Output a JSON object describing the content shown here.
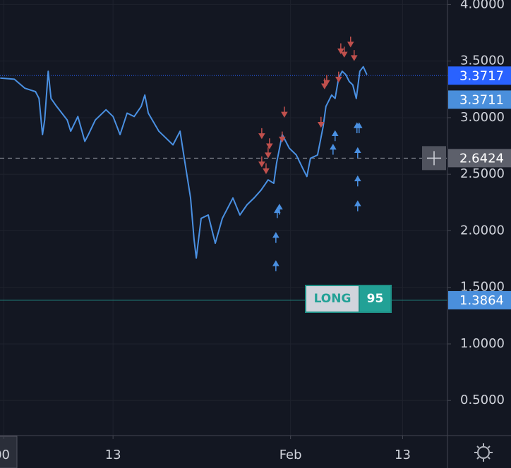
{
  "chart_data": {
    "type": "line",
    "color": "#4a90e2",
    "x": [
      0.92,
      2.43,
      3.57,
      4.7,
      5.08,
      5.45,
      5.68,
      6.06,
      6.36,
      6.96,
      8.09,
      8.47,
      9.23,
      9.98,
      10.36,
      11.11,
      12.25,
      13,
      13.75,
      14.51,
      15.26,
      16.02,
      16.4,
      16.77,
      17.91,
      18.66,
      19.42,
      20.17,
      20.7,
      21.3,
      21.68,
      21.91,
      22.43,
      23.19,
      23.94,
      24.7,
      25.83,
      26.58,
      27.34,
      28.09,
      28.85,
      29.6,
      30.21,
      30.51,
      31.11,
      31.87,
      32.62,
      33.38,
      33.75,
      34.13,
      34.89,
      35.49,
      35.79,
      36.4,
      36.77,
      37.15,
      37.53,
      37.91,
      38.28,
      38.66,
      39.04,
      39.42,
      39.79,
      40.17
    ],
    "values": [
      3.35,
      3.34,
      3.26,
      3.23,
      3.17,
      2.85,
      2.98,
      3.41,
      3.17,
      3.1,
      2.98,
      2.88,
      3.01,
      2.79,
      2.85,
      2.98,
      3.07,
      3.01,
      2.85,
      3.04,
      3.01,
      3.1,
      3.2,
      3.04,
      2.88,
      2.82,
      2.76,
      2.88,
      2.6,
      2.29,
      1.92,
      1.76,
      2.11,
      2.14,
      1.89,
      2.11,
      2.29,
      2.14,
      2.23,
      2.29,
      2.36,
      2.45,
      2.42,
      2.6,
      2.85,
      2.73,
      2.67,
      2.54,
      2.48,
      2.64,
      2.67,
      2.92,
      3.1,
      3.2,
      3.17,
      3.35,
      3.41,
      3.38,
      3.32,
      3.29,
      3.17,
      3.41,
      3.45,
      3.38
    ],
    "sell_signals": {
      "color": "#c0504d",
      "x": [
        28.92,
        29.75,
        29.6,
        28.92,
        29.38,
        31.34,
        31.11,
        35.64,
        35.87,
        35.26,
        37.38,
        37.75,
        38.43,
        38.81,
        37.15
      ],
      "values": [
        2.82,
        2.73,
        2.65,
        2.57,
        2.51,
        3.01,
        2.79,
        3.26,
        3.29,
        2.92,
        3.57,
        3.54,
        3.63,
        3.51,
        3.32
      ]
    },
    "buy_signals": {
      "color": "#4a90e2",
      "x": [
        30.43,
        30.43,
        30.58,
        30.81,
        36.77,
        36.55,
        39.11,
        39.34,
        39.19,
        39.19,
        39.19
      ],
      "values": [
        1.73,
        1.98,
        2.2,
        2.23,
        2.88,
        2.76,
        2.95,
        2.95,
        2.73,
        2.48,
        2.26
      ]
    },
    "xlim": [
      0.9,
      48.8
    ],
    "ylim": [
      0.19,
      4.04
    ],
    "xticks": [
      {
        "value": 1.3,
        "label": "00"
      },
      13,
      {
        "value": 32,
        "label": "Feb"
      },
      {
        "value": 44,
        "label": "13"
      }
    ],
    "yticks": [
      {
        "value": 0.5,
        "label": "0.5000"
      },
      {
        "value": 1,
        "label": "1.0000"
      },
      {
        "value": 1.5,
        "label": "1.5000"
      },
      {
        "value": 2,
        "label": "2.0000"
      },
      {
        "value": 2.5,
        "label": "2.5000"
      },
      {
        "value": 3,
        "label": "3.0000"
      },
      {
        "value": 3.5,
        "label": "3.5000"
      },
      {
        "value": 4,
        "label": "4.0000"
      }
    ],
    "grid": true,
    "price_lines": [
      {
        "value": 3.3717,
        "label": "3.3717",
        "color": "#2962ff",
        "style": "dotted"
      },
      {
        "value": 3.3711,
        "label": "3.3711",
        "color": "#4a8fdc",
        "style": "none"
      },
      {
        "value": 2.6424,
        "label": "2.6424",
        "color": "#5d606b",
        "style": "dashed"
      },
      {
        "value": 1.3864,
        "label": "1.3864",
        "color": "#4a8fdc",
        "style": "solid",
        "line_color": "#1f7a74"
      }
    ],
    "position": {
      "side": "LONG",
      "size": "95"
    }
  }
}
